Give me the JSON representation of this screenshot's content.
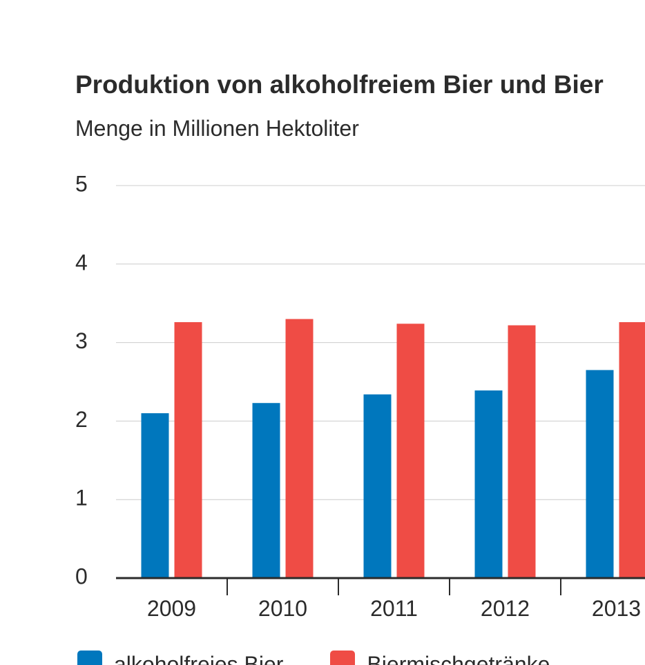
{
  "colors": {
    "series_1": "#0077bd",
    "series_2": "#ef4c45",
    "grid": "#cccccc",
    "axis": "#2b2b2b",
    "text": "#2b2b2b"
  },
  "chart_data": {
    "type": "bar",
    "title": "Produktion von alkoholfreiem Bier und Bier",
    "subtitle": "Menge in Millionen Hektoliter",
    "xlabel": "",
    "ylabel": "",
    "categories": [
      "2009",
      "2010",
      "2011",
      "2012",
      "2013"
    ],
    "series": [
      {
        "name": "alkoholfreies Bier",
        "values": [
          2.1,
          2.23,
          2.34,
          2.39,
          2.65
        ]
      },
      {
        "name": "Biermischgetränke",
        "values": [
          3.26,
          3.3,
          3.24,
          3.22,
          3.26
        ]
      }
    ],
    "ylim": [
      0,
      5
    ],
    "yticks": [
      "0",
      "1",
      "2",
      "3",
      "4",
      "5"
    ],
    "grid": true,
    "legend_position": "bottom-left"
  }
}
